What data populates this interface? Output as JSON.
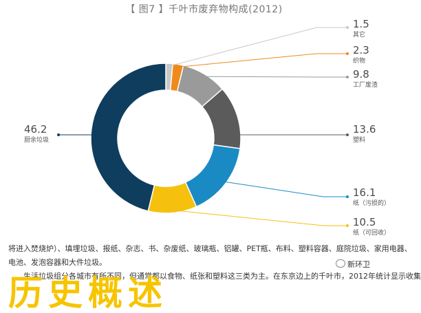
{
  "figure_title": "【 图7 】千叶市废弃物构成(2012)",
  "colors": {
    "其它": "#c8c8c8",
    "织物": "#ef8a1a",
    "工厂废渣": "#9a9a9a",
    "塑料": "#5b5b5b",
    "纸（污损的）": "#1a8ac4",
    "纸（可回收）": "#f5c10e",
    "厨余垃圾": "#0e3d5e"
  },
  "chart_data": {
    "type": "pie",
    "donut": true,
    "title": "【 图7 】千叶市废弃物构成(2012)",
    "slices": [
      {
        "label": "其它",
        "value": 1.5,
        "value_text": "1.5"
      },
      {
        "label": "织物",
        "value": 2.3,
        "value_text": "2.3"
      },
      {
        "label": "工厂废渣",
        "value": 9.8,
        "value_text": "9.8"
      },
      {
        "label": "塑料",
        "value": 13.6,
        "value_text": "13.6"
      },
      {
        "label": "纸（污损的）",
        "value": 16.1,
        "value_text": "16.1"
      },
      {
        "label": "纸（可回收）",
        "value": 10.5,
        "value_text": "10.5"
      },
      {
        "label": "厨余垃圾",
        "value": 46.2,
        "value_text": "46.2"
      }
    ],
    "legend_placement": "callouts"
  },
  "text": {
    "line1": "将进入焚烧炉）、填埋垃圾、报纸、杂志、书、杂废纸、玻璃瓶、铝罐、PET瓶、布料、塑料容器、庭院垃圾、家用电器、",
    "line2": "电池、发泡容器和大件垃圾。",
    "line3": "生活垃圾组分各城市有所不同，但通常都以食物、纸张和塑料这三类为主。在东京边上的千叶市，2012年统计显示收集",
    "heading": "历史概述",
    "watermark": "新环卫"
  }
}
